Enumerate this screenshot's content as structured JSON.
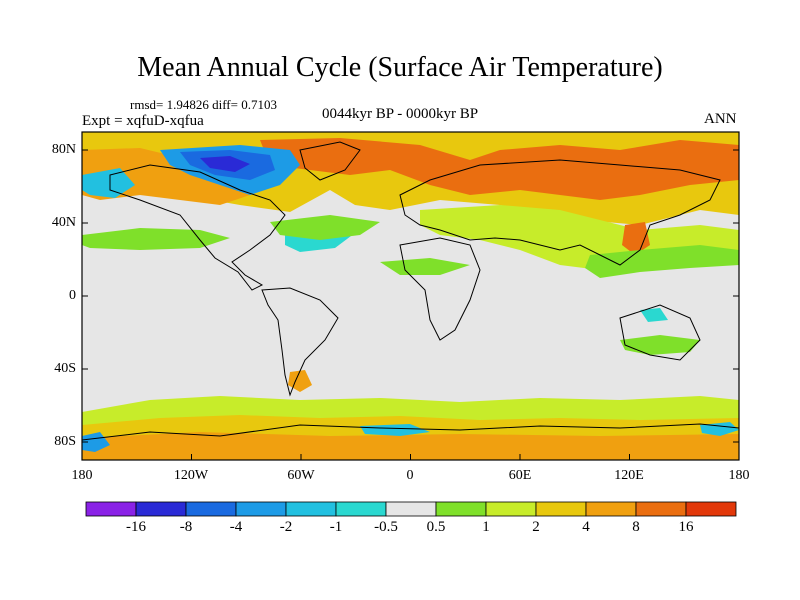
{
  "header": {
    "title": "Mean Annual Cycle (Surface Air Temperature)",
    "stats": "rmsd= 1.94826 diff= 0.7103",
    "expt": "Expt = xqfuD-xqfua",
    "period": "0044kyr BP - 0000kyr BP",
    "season": "ANN"
  },
  "axes": {
    "lat_labels": [
      "80N",
      "40N",
      "0",
      "40S",
      "80S"
    ],
    "lon_labels": [
      "180",
      "120W",
      "60W",
      "0",
      "60E",
      "120E",
      "180"
    ]
  },
  "colorbar": {
    "labels": [
      "-16",
      "-8",
      "-4",
      "-2",
      "-1",
      "-0.5",
      "0.5",
      "1",
      "2",
      "4",
      "8",
      "16"
    ],
    "colors": [
      "#8a22e6",
      "#2a2ad6",
      "#1a6ae0",
      "#1d9be6",
      "#22c0e0",
      "#2ad8d0",
      "#e6e6e6",
      "#7fe02a",
      "#c7ec2a",
      "#e8c80e",
      "#f0a010",
      "#ea6e10",
      "#e2380a"
    ]
  }
}
